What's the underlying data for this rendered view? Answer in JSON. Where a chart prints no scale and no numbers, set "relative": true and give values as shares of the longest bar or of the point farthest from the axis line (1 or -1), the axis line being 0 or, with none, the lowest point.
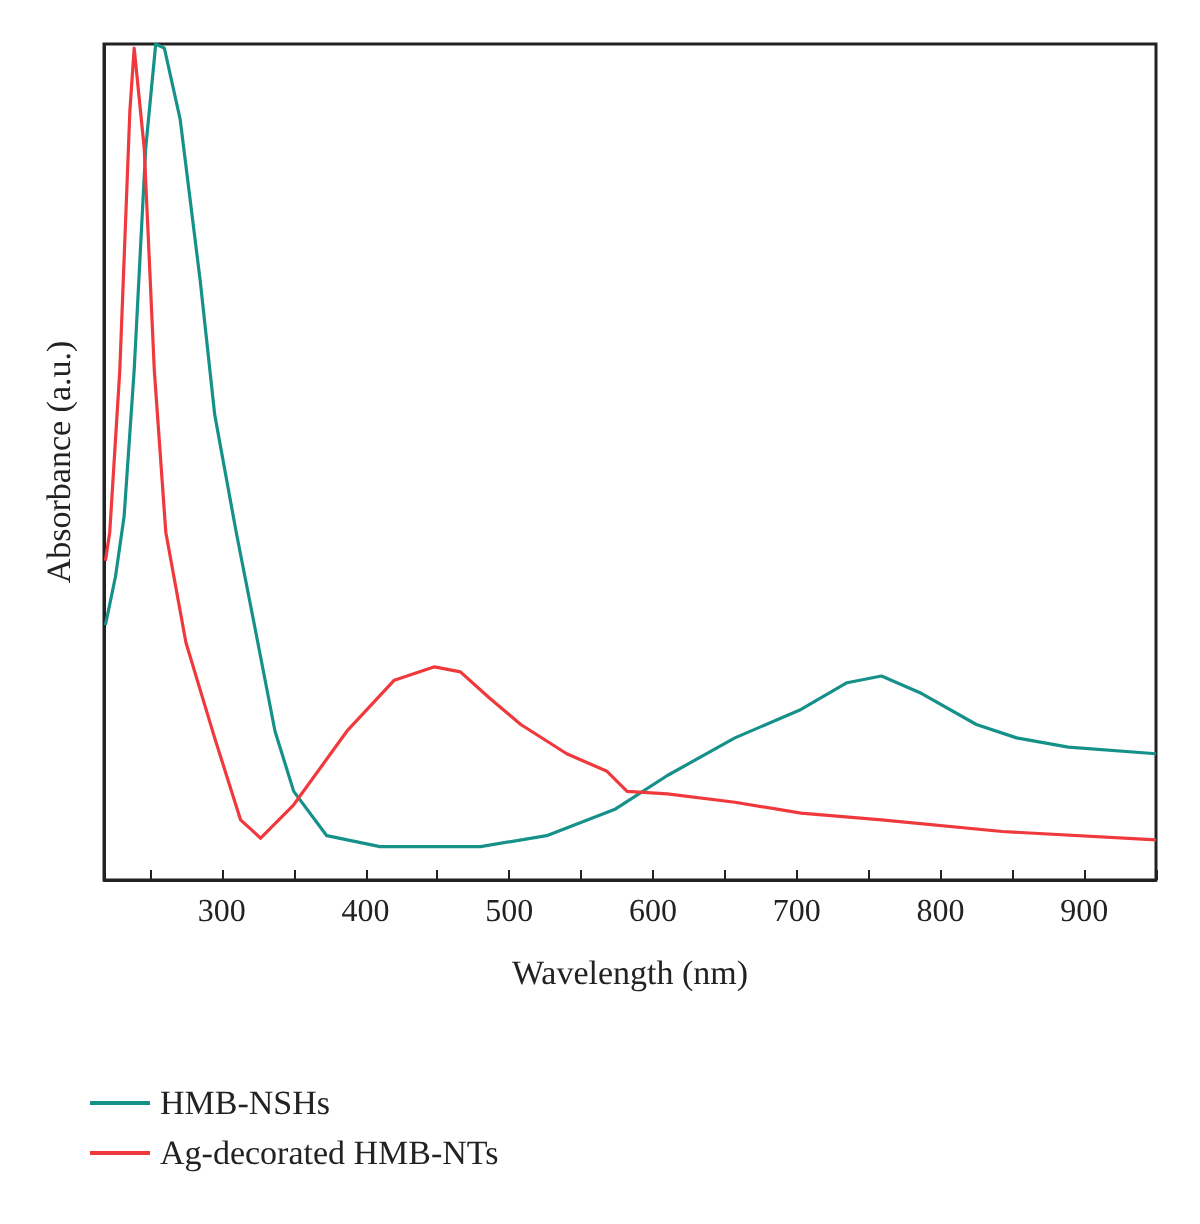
{
  "chart_data": {
    "type": "line",
    "xlabel": "Wavelength (nm)",
    "ylabel": "Absorbance (a.u.)",
    "relative": true,
    "xlim": [
      218,
      950
    ],
    "xticks": [
      {
        "value": 250,
        "label": null
      },
      300,
      {
        "value": 350,
        "label": null
      },
      400,
      {
        "value": 450,
        "label": null
      },
      500,
      {
        "value": 550,
        "label": null
      },
      600,
      {
        "value": 650,
        "label": null
      },
      700,
      {
        "value": 750,
        "label": null
      },
      800,
      {
        "value": 850,
        "label": null
      },
      900,
      {
        "value": 950,
        "label": null
      }
    ],
    "grid": false,
    "legend": "bottom",
    "marker": "none",
    "line_style": "solid",
    "series": [
      {
        "name": "HMB-NSHs",
        "color": "#16918a",
        "x": [
          219,
          226,
          232,
          239,
          247,
          254,
          260,
          271,
          285,
          295,
          310,
          323,
          337,
          350,
          373,
          410,
          480,
          526,
          574,
          610,
          657,
          703,
          735,
          759,
          787,
          825,
          853,
          889,
          950
        ],
        "values": [
          0.305,
          0.363,
          0.435,
          0.61,
          0.875,
          1,
          0.995,
          0.91,
          0.716,
          0.557,
          0.416,
          0.302,
          0.178,
          0.106,
          0.053,
          0.04,
          0.04,
          0.053,
          0.085,
          0.125,
          0.17,
          0.204,
          0.236,
          0.244,
          0.223,
          0.186,
          0.17,
          0.159,
          0.151
        ]
      },
      {
        "name": "Ag-decorated HMB-NTs",
        "color": "#f0393c",
        "x": [
          219,
          222,
          229,
          236,
          239,
          246,
          253,
          261,
          275,
          295,
          313,
          327,
          350,
          387,
          420,
          448,
          466,
          486,
          508,
          540,
          568,
          582,
          610,
          657,
          703,
          759,
          843,
          950
        ],
        "values": [
          0.382,
          0.416,
          0.61,
          0.92,
          0.995,
          0.875,
          0.61,
          0.416,
          0.284,
          0.17,
          0.072,
          0.05,
          0.09,
          0.178,
          0.239,
          0.255,
          0.249,
          0.218,
          0.186,
          0.151,
          0.13,
          0.106,
          0.103,
          0.093,
          0.08,
          0.072,
          0.058,
          0.048
        ]
      }
    ]
  }
}
